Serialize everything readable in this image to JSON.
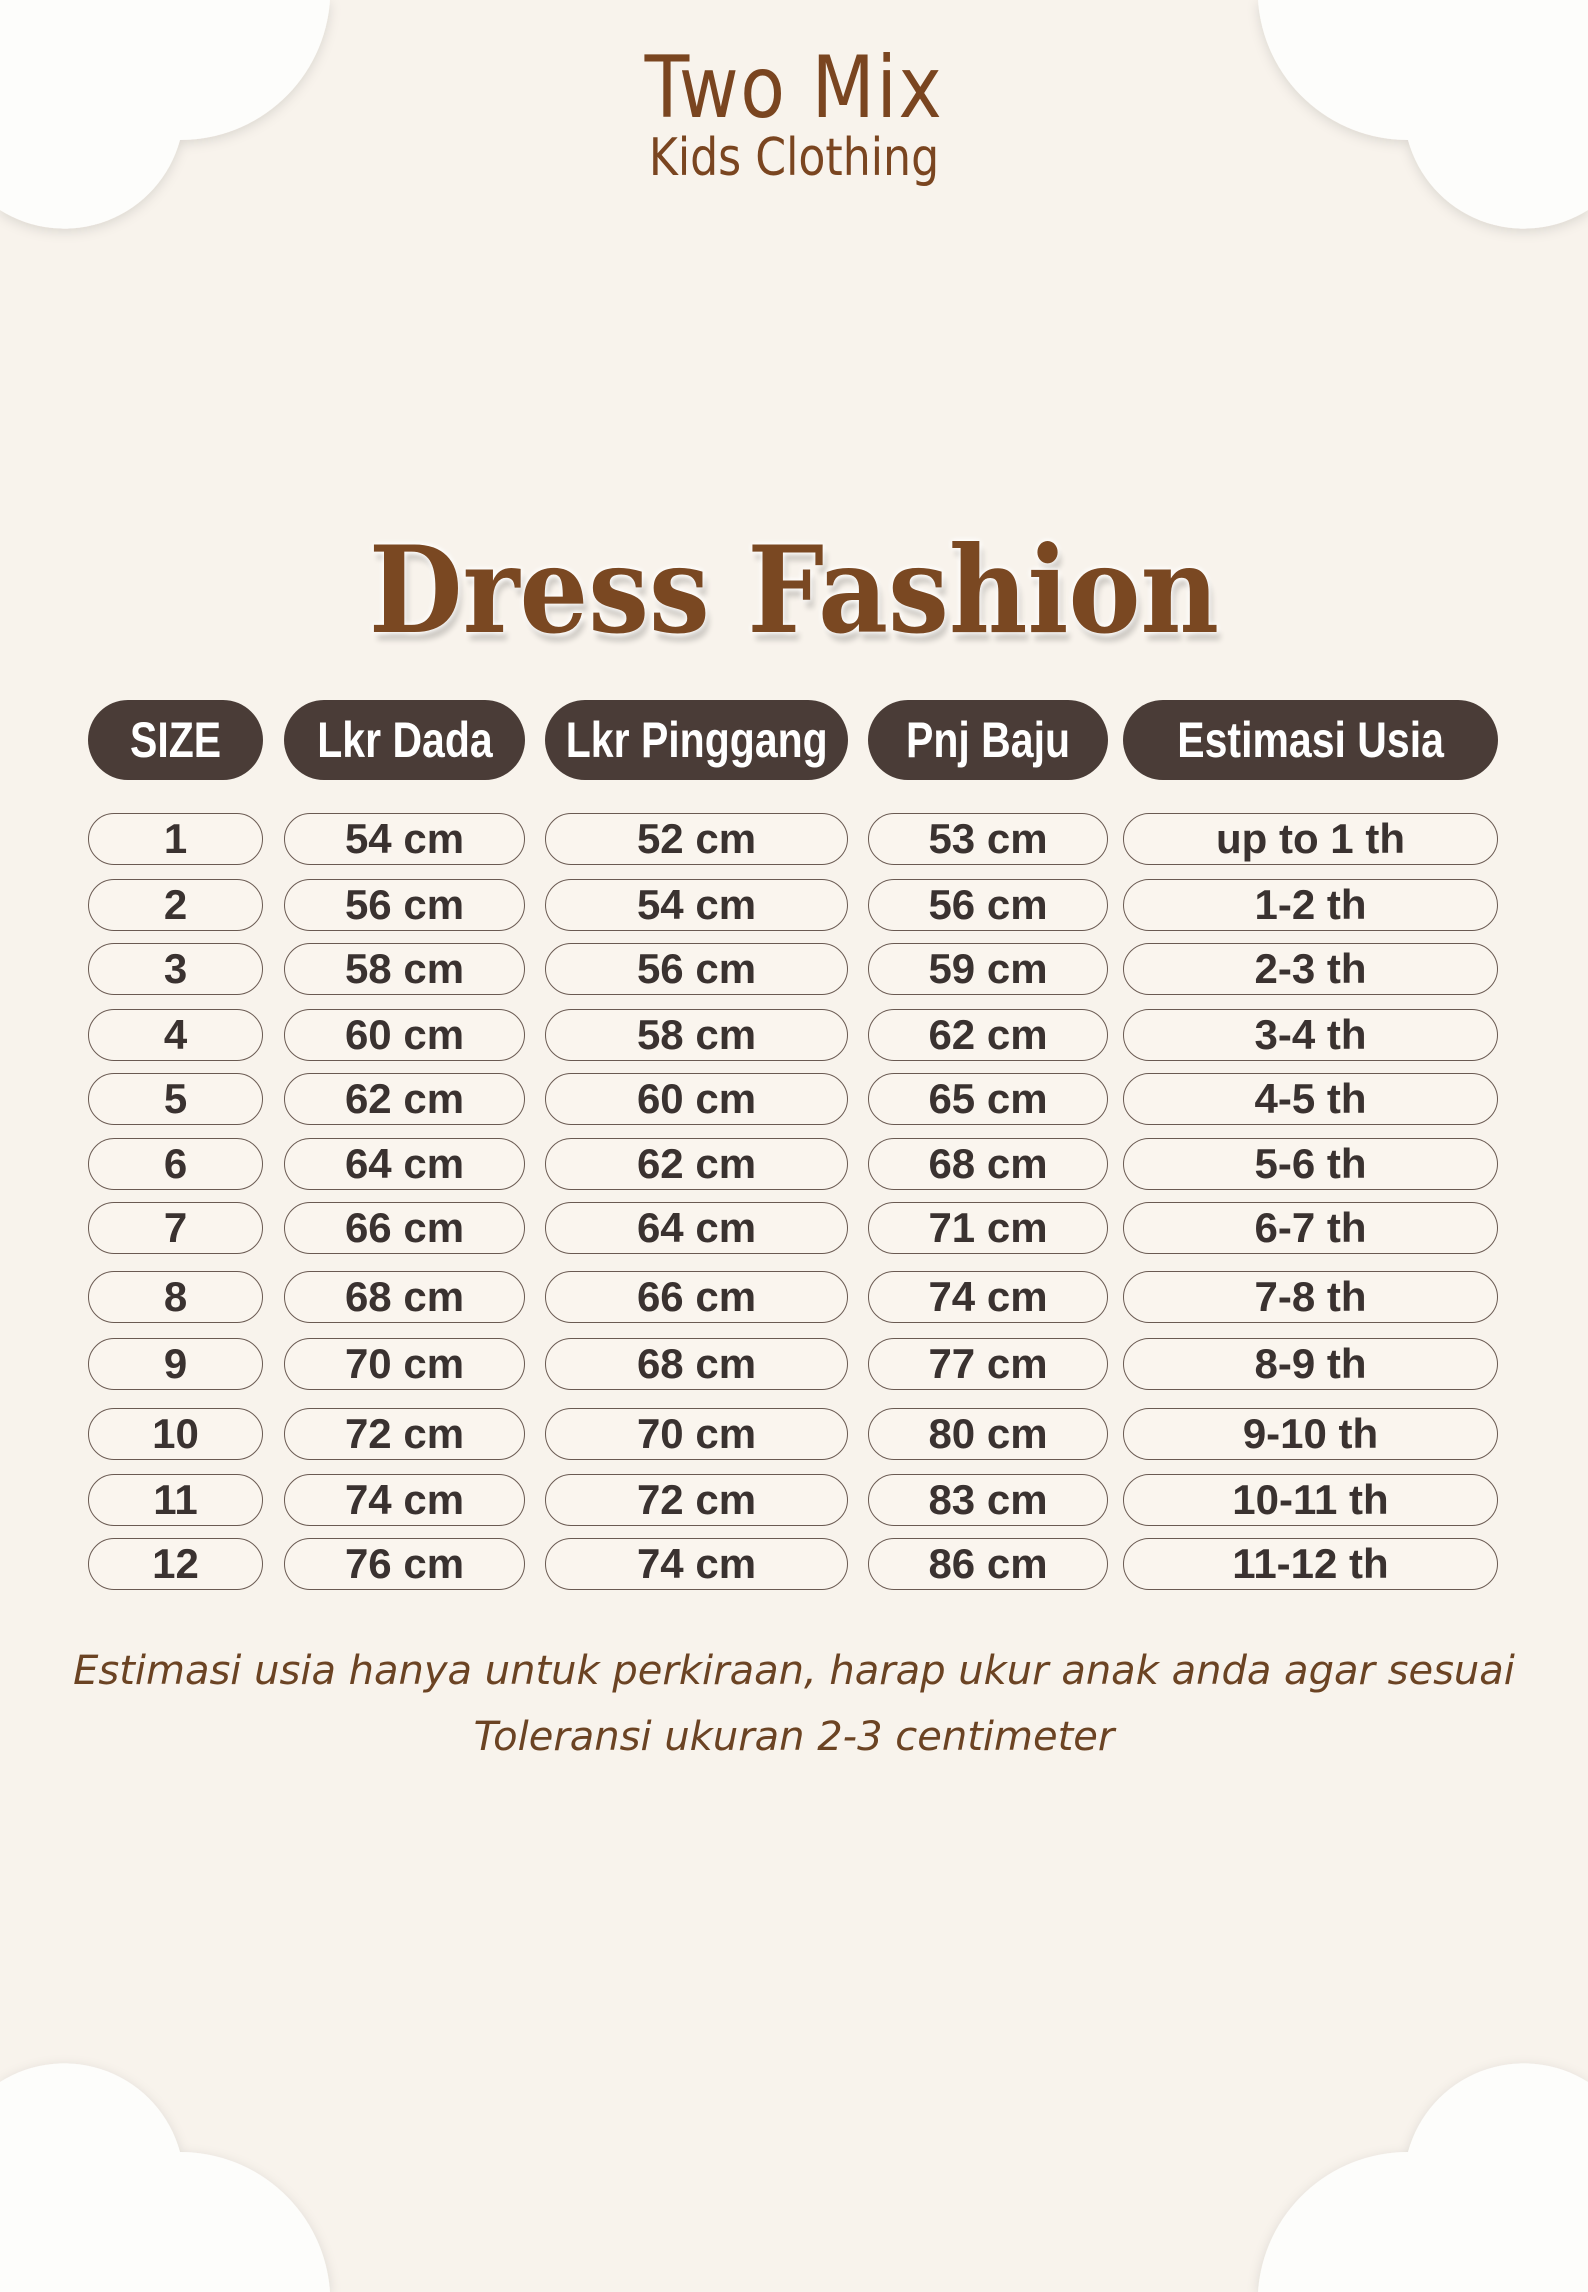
{
  "brand": {
    "name": "Two Mix",
    "tagline": "Kids Clothing"
  },
  "title": "Dress Fashion",
  "colors": {
    "background": "#f8f3ec",
    "header_pill": "#4a3c37",
    "brand_brown": "#7a4520",
    "cloud": "#fdfdfb"
  },
  "table": {
    "headers": [
      "SIZE",
      "Lkr Dada",
      "Lkr Pinggang",
      "Pnj Baju",
      "Estimasi Usia"
    ],
    "rows": [
      [
        "1",
        "54 cm",
        "52 cm",
        "53 cm",
        "up to 1 th"
      ],
      [
        "2",
        "56 cm",
        "54 cm",
        "56 cm",
        "1-2 th"
      ],
      [
        "3",
        "58 cm",
        "56 cm",
        "59 cm",
        "2-3 th"
      ],
      [
        "4",
        "60 cm",
        "58 cm",
        "62 cm",
        "3-4 th"
      ],
      [
        "5",
        "62 cm",
        "60 cm",
        "65 cm",
        "4-5 th"
      ],
      [
        "6",
        "64 cm",
        "62 cm",
        "68 cm",
        "5-6 th"
      ],
      [
        "7",
        "66 cm",
        "64 cm",
        "71 cm",
        "6-7 th"
      ],
      [
        "8",
        "68 cm",
        "66 cm",
        "74 cm",
        "7-8 th"
      ],
      [
        "9",
        "70 cm",
        "68 cm",
        "77 cm",
        "8-9 th"
      ],
      [
        "10",
        "72 cm",
        "70 cm",
        "80 cm",
        "9-10 th"
      ],
      [
        "11",
        "74 cm",
        "72 cm",
        "83 cm",
        "10-11 th"
      ],
      [
        "12",
        "76 cm",
        "74 cm",
        "86 cm",
        "11-12 th"
      ]
    ]
  },
  "notes": [
    "Estimasi usia hanya untuk perkiraan, harap ukur anak anda agar sesuai",
    "Toleransi ukuran 2-3 centimeter"
  ]
}
